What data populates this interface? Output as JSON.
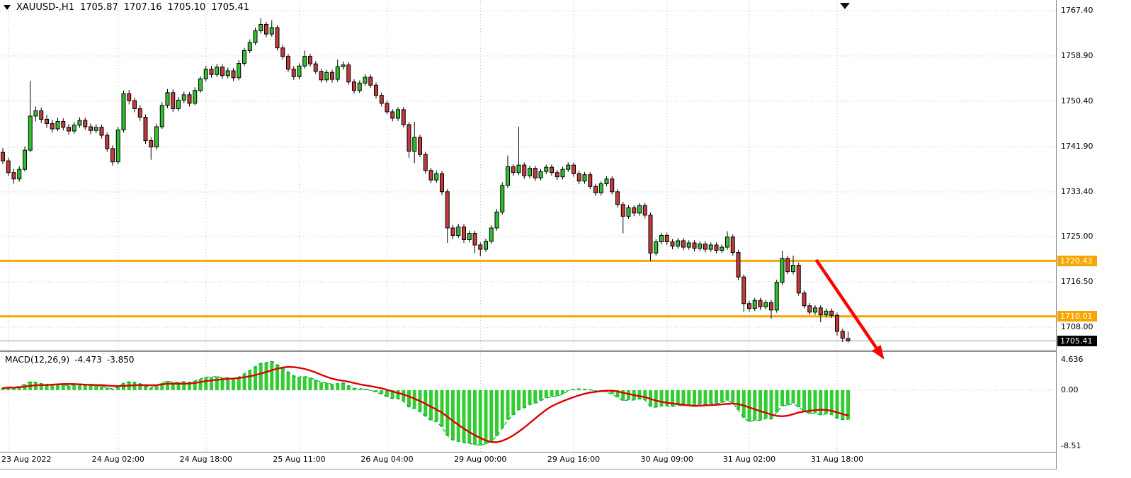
{
  "header": {
    "symbol_period": "XAUUSD-,H1",
    "open": "1705.87",
    "high": "1707.16",
    "low": "1705.10",
    "close": "1705.41"
  },
  "indicator": {
    "name": "MACD(12,26,9)",
    "macd_value": "-4.473",
    "signal_value": "-3.850"
  },
  "colors": {
    "bull": "#2fbf2f",
    "bear": "#c23a3a",
    "wick": "#000000",
    "grid": "#c3c3c3",
    "hline": "#f7a600",
    "arrow": "#ff0000",
    "signal": "#dd0000",
    "macd_bar": "#32cd32",
    "macd_dash": "#00a24a",
    "last_price_badge": "#000000",
    "hline_badge": "#f7a600",
    "badge_text": "#ffffff",
    "axis_text": "#000000",
    "current_price_line": "#9a9a9a"
  },
  "chart_data": [
    {
      "type": "candlestick",
      "title": "XAUUSD-,H1",
      "timeframe": "H1",
      "ylim": [
        1703.73,
        1769.39
      ],
      "grid": true,
      "y_ticks": [
        {
          "label": "1767.40",
          "value": 1767.4
        },
        {
          "label": "1758.90",
          "value": 1758.9
        },
        {
          "label": "1750.40",
          "value": 1750.4
        },
        {
          "label": "1741.90",
          "value": 1741.9
        },
        {
          "label": "1733.40",
          "value": 1733.4
        },
        {
          "label": "1725.00",
          "value": 1725.0
        },
        {
          "label": "1716.50",
          "value": 1716.5
        },
        {
          "label": "1708.00",
          "value": 1708.0
        }
      ],
      "x_ticks": [
        {
          "text": "23 Aug 2022",
          "bar": 1,
          "align": "left"
        },
        {
          "text": "24 Aug 02:00",
          "bar": 21
        },
        {
          "text": "24 Aug 18:00",
          "bar": 37
        },
        {
          "text": "25 Aug 11:00",
          "bar": 54
        },
        {
          "text": "26 Aug 04:00",
          "bar": 70
        },
        {
          "text": "29 Aug 00:00",
          "bar": 87
        },
        {
          "text": "29 Aug 16:00",
          "bar": 104
        },
        {
          "text": "30 Aug 09:00",
          "bar": 121
        },
        {
          "text": "31 Aug 02:00",
          "bar": 136
        },
        {
          "text": "31 Aug 18:00",
          "bar": 152
        }
      ],
      "hlines": [
        {
          "label": "1720.43",
          "price": 1720.43
        },
        {
          "label": "1710.01",
          "price": 1710.01
        }
      ],
      "last_price": {
        "label": "1705.41",
        "price": 1705.41
      },
      "arrow": {
        "from_bar": 148.2,
        "from_price": 1720.6,
        "to_bar": 160.6,
        "to_price": 1701.9
      },
      "candles": [
        [
          1740.8,
          1741.6,
          1738.6,
          1739.2
        ],
        [
          1739.2,
          1739.8,
          1736.4,
          1737.0
        ],
        [
          1737.0,
          1737.7,
          1734.9,
          1735.8
        ],
        [
          1735.8,
          1738.2,
          1735.3,
          1737.6
        ],
        [
          1737.6,
          1741.9,
          1737.2,
          1741.2
        ],
        [
          1741.2,
          1754.2,
          1740.8,
          1747.6
        ],
        [
          1747.6,
          1749.4,
          1746.6,
          1748.6
        ],
        [
          1748.6,
          1749.2,
          1746.3,
          1747.0
        ],
        [
          1747.0,
          1747.8,
          1745.4,
          1746.2
        ],
        [
          1746.2,
          1746.9,
          1744.5,
          1745.2
        ],
        [
          1745.2,
          1747.3,
          1744.8,
          1746.6
        ],
        [
          1746.6,
          1747.2,
          1744.9,
          1745.5
        ],
        [
          1745.5,
          1746.1,
          1744.1,
          1744.8
        ],
        [
          1744.8,
          1746.5,
          1744.3,
          1745.9
        ],
        [
          1745.9,
          1747.4,
          1745.4,
          1746.8
        ],
        [
          1746.8,
          1747.3,
          1745.0,
          1745.6
        ],
        [
          1745.6,
          1746.2,
          1744.2,
          1744.9
        ],
        [
          1744.9,
          1746.1,
          1744.4,
          1745.5
        ],
        [
          1745.5,
          1746.0,
          1743.4,
          1744.0
        ],
        [
          1744.0,
          1744.5,
          1740.9,
          1741.5
        ],
        [
          1741.5,
          1742.1,
          1738.3,
          1739.0
        ],
        [
          1739.0,
          1745.6,
          1738.6,
          1745.0
        ],
        [
          1745.0,
          1752.4,
          1744.5,
          1751.8
        ],
        [
          1751.8,
          1752.5,
          1749.8,
          1750.5
        ],
        [
          1750.5,
          1751.1,
          1748.3,
          1749.0
        ],
        [
          1749.0,
          1749.7,
          1746.7,
          1747.4
        ],
        [
          1747.4,
          1747.9,
          1742.4,
          1743.0
        ],
        [
          1743.0,
          1743.6,
          1739.4,
          1741.8
        ],
        [
          1741.8,
          1746.2,
          1741.3,
          1745.6
        ],
        [
          1745.6,
          1750.2,
          1745.2,
          1749.6
        ],
        [
          1749.6,
          1752.7,
          1749.1,
          1752.0
        ],
        [
          1752.0,
          1752.6,
          1748.4,
          1749.0
        ],
        [
          1749.0,
          1751.2,
          1748.5,
          1750.6
        ],
        [
          1750.6,
          1752.2,
          1750.0,
          1751.6
        ],
        [
          1751.6,
          1752.1,
          1749.4,
          1750.0
        ],
        [
          1750.0,
          1753.0,
          1749.6,
          1752.4
        ],
        [
          1752.4,
          1755.1,
          1752.0,
          1754.6
        ],
        [
          1754.6,
          1757.0,
          1754.1,
          1756.4
        ],
        [
          1756.4,
          1757.0,
          1754.8,
          1755.4
        ],
        [
          1755.4,
          1757.4,
          1754.9,
          1756.8
        ],
        [
          1756.8,
          1757.3,
          1754.6,
          1755.2
        ],
        [
          1755.2,
          1756.7,
          1754.7,
          1756.1
        ],
        [
          1756.1,
          1756.6,
          1754.2,
          1754.8
        ],
        [
          1754.8,
          1758.1,
          1754.3,
          1757.5
        ],
        [
          1757.5,
          1760.4,
          1757.0,
          1759.9
        ],
        [
          1759.9,
          1762.0,
          1759.4,
          1761.4
        ],
        [
          1761.4,
          1764.2,
          1760.9,
          1763.6
        ],
        [
          1763.6,
          1766.0,
          1763.1,
          1764.8
        ],
        [
          1764.8,
          1765.3,
          1762.4,
          1763.0
        ],
        [
          1763.0,
          1765.6,
          1762.5,
          1764.2
        ],
        [
          1764.2,
          1764.7,
          1759.9,
          1760.4
        ],
        [
          1760.4,
          1761.0,
          1758.2,
          1758.8
        ],
        [
          1758.8,
          1759.3,
          1755.9,
          1756.4
        ],
        [
          1756.4,
          1757.0,
          1754.4,
          1755.0
        ],
        [
          1755.0,
          1757.5,
          1754.5,
          1757.0
        ],
        [
          1757.0,
          1759.9,
          1756.5,
          1758.8
        ],
        [
          1758.8,
          1759.3,
          1756.9,
          1757.4
        ],
        [
          1757.4,
          1757.9,
          1755.5,
          1756.0
        ],
        [
          1756.0,
          1756.5,
          1753.9,
          1754.4
        ],
        [
          1754.4,
          1756.3,
          1753.9,
          1755.8
        ],
        [
          1755.8,
          1756.3,
          1753.9,
          1754.5
        ],
        [
          1754.5,
          1758.2,
          1754.0,
          1756.9
        ],
        [
          1756.9,
          1757.9,
          1756.3,
          1757.2
        ],
        [
          1757.2,
          1757.7,
          1753.5,
          1754.0
        ],
        [
          1754.0,
          1754.5,
          1751.8,
          1752.4
        ],
        [
          1752.4,
          1754.3,
          1751.9,
          1753.8
        ],
        [
          1753.8,
          1755.5,
          1753.3,
          1754.9
        ],
        [
          1754.9,
          1755.4,
          1752.9,
          1753.4
        ],
        [
          1753.4,
          1753.9,
          1750.9,
          1751.5
        ],
        [
          1751.5,
          1752.0,
          1749.4,
          1750.0
        ],
        [
          1750.0,
          1750.5,
          1747.9,
          1748.4
        ],
        [
          1748.4,
          1748.9,
          1746.6,
          1747.2
        ],
        [
          1747.2,
          1749.3,
          1746.7,
          1748.8
        ],
        [
          1748.8,
          1749.3,
          1745.5,
          1746.0
        ],
        [
          1746.0,
          1746.5,
          1739.8,
          1741.0
        ],
        [
          1741.0,
          1746.5,
          1738.8,
          1743.6
        ],
        [
          1743.6,
          1744.1,
          1739.9,
          1740.4
        ],
        [
          1740.4,
          1740.9,
          1736.8,
          1737.4
        ],
        [
          1737.4,
          1737.9,
          1735.0,
          1735.6
        ],
        [
          1735.6,
          1737.4,
          1735.1,
          1736.8
        ],
        [
          1736.8,
          1737.3,
          1732.8,
          1733.4
        ],
        [
          1733.4,
          1733.9,
          1723.8,
          1726.6
        ],
        [
          1726.6,
          1727.2,
          1724.5,
          1725.2
        ],
        [
          1725.2,
          1727.4,
          1724.7,
          1726.8
        ],
        [
          1726.8,
          1727.3,
          1723.8,
          1724.4
        ],
        [
          1724.4,
          1726.1,
          1723.9,
          1725.6
        ],
        [
          1725.6,
          1726.1,
          1721.9,
          1723.4
        ],
        [
          1723.4,
          1723.9,
          1721.3,
          1722.6
        ],
        [
          1722.6,
          1724.6,
          1722.1,
          1724.1
        ],
        [
          1724.1,
          1727.1,
          1723.6,
          1726.6
        ],
        [
          1726.6,
          1730.2,
          1726.1,
          1729.6
        ],
        [
          1729.6,
          1735.2,
          1729.1,
          1734.6
        ],
        [
          1734.6,
          1740.2,
          1734.1,
          1738.1
        ],
        [
          1738.1,
          1738.6,
          1736.4,
          1737.0
        ],
        [
          1737.0,
          1745.6,
          1736.5,
          1738.4
        ],
        [
          1738.4,
          1738.9,
          1735.8,
          1736.4
        ],
        [
          1736.4,
          1738.3,
          1735.9,
          1737.8
        ],
        [
          1737.8,
          1738.3,
          1735.4,
          1736.0
        ],
        [
          1736.0,
          1737.7,
          1735.5,
          1737.2
        ],
        [
          1737.2,
          1738.5,
          1736.7,
          1738.0
        ],
        [
          1738.0,
          1738.5,
          1736.4,
          1737.0
        ],
        [
          1737.0,
          1737.5,
          1735.6,
          1736.2
        ],
        [
          1736.2,
          1738.1,
          1735.7,
          1737.6
        ],
        [
          1737.6,
          1738.9,
          1737.1,
          1738.4
        ],
        [
          1738.4,
          1738.9,
          1736.2,
          1736.8
        ],
        [
          1736.8,
          1737.3,
          1734.8,
          1735.4
        ],
        [
          1735.4,
          1737.1,
          1734.9,
          1736.6
        ],
        [
          1736.6,
          1737.1,
          1733.9,
          1734.4
        ],
        [
          1734.4,
          1734.9,
          1732.6,
          1733.2
        ],
        [
          1733.2,
          1735.4,
          1732.7,
          1734.9
        ],
        [
          1734.9,
          1736.3,
          1734.4,
          1735.8
        ],
        [
          1735.8,
          1736.3,
          1732.9,
          1733.4
        ],
        [
          1733.4,
          1733.9,
          1730.4,
          1731.0
        ],
        [
          1731.0,
          1731.5,
          1725.6,
          1728.8
        ],
        [
          1728.8,
          1730.9,
          1728.3,
          1730.4
        ],
        [
          1730.4,
          1730.9,
          1728.8,
          1729.4
        ],
        [
          1729.4,
          1731.3,
          1728.9,
          1730.8
        ],
        [
          1730.8,
          1731.3,
          1728.4,
          1729.0
        ],
        [
          1729.0,
          1729.5,
          1720.4,
          1721.9
        ],
        [
          1721.9,
          1724.5,
          1721.4,
          1724.0
        ],
        [
          1724.0,
          1725.7,
          1723.5,
          1725.2
        ],
        [
          1725.2,
          1725.7,
          1723.4,
          1724.0
        ],
        [
          1724.0,
          1724.5,
          1722.6,
          1723.2
        ],
        [
          1723.2,
          1724.7,
          1722.7,
          1724.2
        ],
        [
          1724.2,
          1724.7,
          1722.4,
          1723.0
        ],
        [
          1723.0,
          1724.3,
          1722.5,
          1723.8
        ],
        [
          1723.8,
          1724.3,
          1722.2,
          1722.8
        ],
        [
          1722.8,
          1724.1,
          1722.3,
          1723.6
        ],
        [
          1723.6,
          1724.1,
          1722.0,
          1722.6
        ],
        [
          1722.6,
          1723.9,
          1722.1,
          1723.4
        ],
        [
          1723.4,
          1723.9,
          1721.8,
          1722.4
        ],
        [
          1722.4,
          1723.5,
          1721.9,
          1723.0
        ],
        [
          1723.0,
          1726.0,
          1722.5,
          1724.9
        ],
        [
          1724.9,
          1725.4,
          1721.4,
          1722.0
        ],
        [
          1722.0,
          1722.5,
          1716.8,
          1717.4
        ],
        [
          1717.4,
          1717.9,
          1710.8,
          1712.4
        ],
        [
          1712.4,
          1712.9,
          1710.9,
          1711.5
        ],
        [
          1711.5,
          1713.5,
          1711.0,
          1713.0
        ],
        [
          1713.0,
          1713.5,
          1711.2,
          1711.8
        ],
        [
          1711.8,
          1713.1,
          1711.3,
          1712.6
        ],
        [
          1712.6,
          1713.1,
          1709.6,
          1711.2
        ],
        [
          1711.2,
          1716.9,
          1710.7,
          1716.4
        ],
        [
          1716.4,
          1722.3,
          1715.9,
          1720.9
        ],
        [
          1720.9,
          1721.4,
          1717.9,
          1718.4
        ],
        [
          1718.4,
          1721.4,
          1717.9,
          1719.6
        ],
        [
          1719.6,
          1720.1,
          1713.9,
          1714.4
        ],
        [
          1714.4,
          1714.9,
          1711.5,
          1712.0
        ],
        [
          1712.0,
          1712.5,
          1710.3,
          1710.8
        ],
        [
          1710.8,
          1712.1,
          1710.3,
          1711.6
        ],
        [
          1711.6,
          1712.1,
          1708.9,
          1710.3
        ],
        [
          1710.3,
          1711.5,
          1709.8,
          1711.0
        ],
        [
          1711.0,
          1711.5,
          1709.7,
          1710.2
        ],
        [
          1710.2,
          1710.7,
          1706.4,
          1707.2
        ],
        [
          1707.2,
          1707.7,
          1705.2,
          1705.9
        ],
        [
          1705.87,
          1707.16,
          1705.1,
          1705.41
        ]
      ]
    },
    {
      "type": "bar",
      "title": "MACD(12,26,9)",
      "values": [
        "-4.473",
        "-3.850"
      ],
      "signal_period": 9,
      "ylim": [
        -9.38,
        5.82
      ],
      "y_ticks": [
        {
          "label": "4.636",
          "value": 4.636
        },
        {
          "label": "0.00",
          "value": 0
        },
        {
          "label": "-8.51",
          "value": -8.51
        }
      ],
      "macd": [
        0.3,
        0.5,
        0.4,
        0.6,
        0.9,
        1.3,
        1.2,
        1.0,
        0.9,
        0.8,
        0.9,
        0.8,
        0.7,
        0.8,
        0.9,
        0.8,
        0.7,
        0.7,
        0.6,
        0.4,
        0.2,
        0.5,
        1.1,
        1.3,
        1.2,
        1.0,
        0.6,
        0.4,
        0.7,
        1.1,
        1.4,
        1.2,
        1.2,
        1.3,
        1.2,
        1.4,
        1.7,
        2.0,
        2.0,
        2.1,
        1.9,
        1.9,
        1.7,
        2.0,
        2.5,
        3.0,
        3.6,
        4.1,
        4.2,
        4.4,
        3.9,
        3.4,
        2.8,
        2.2,
        2.0,
        2.1,
        1.9,
        1.6,
        1.2,
        1.1,
        0.9,
        1.0,
        1.1,
        0.7,
        0.3,
        0.2,
        0.2,
        0.0,
        -0.3,
        -0.6,
        -1.0,
        -1.3,
        -1.3,
        -1.7,
        -2.6,
        -2.8,
        -3.3,
        -4.0,
        -4.6,
        -4.8,
        -5.6,
        -6.9,
        -7.6,
        -7.8,
        -8.0,
        -8.1,
        -8.3,
        -8.4,
        -8.2,
        -7.8,
        -7.0,
        -5.8,
        -4.5,
        -3.8,
        -3.0,
        -2.7,
        -2.2,
        -2.0,
        -1.6,
        -1.2,
        -1.0,
        -0.9,
        -0.6,
        -0.1,
        0.15,
        0.2,
        0.15,
        0.1,
        -0.2,
        -0.1,
        -0.3,
        -0.6,
        -1.1,
        -1.6,
        -1.5,
        -1.5,
        -1.3,
        -1.5,
        -2.5,
        -2.6,
        -2.4,
        -2.4,
        -2.5,
        -2.3,
        -2.4,
        -2.2,
        -2.3,
        -2.1,
        -2.2,
        -2.0,
        -2.1,
        -1.9,
        -1.6,
        -1.9,
        -3.0,
        -4.2,
        -4.8,
        -4.6,
        -4.6,
        -4.3,
        -4.4,
        -3.4,
        -2.4,
        -2.3,
        -2.0,
        -2.6,
        -3.2,
        -3.6,
        -3.5,
        -3.8,
        -3.6,
        -3.7,
        -4.3,
        -4.5,
        -4.473
      ]
    }
  ]
}
